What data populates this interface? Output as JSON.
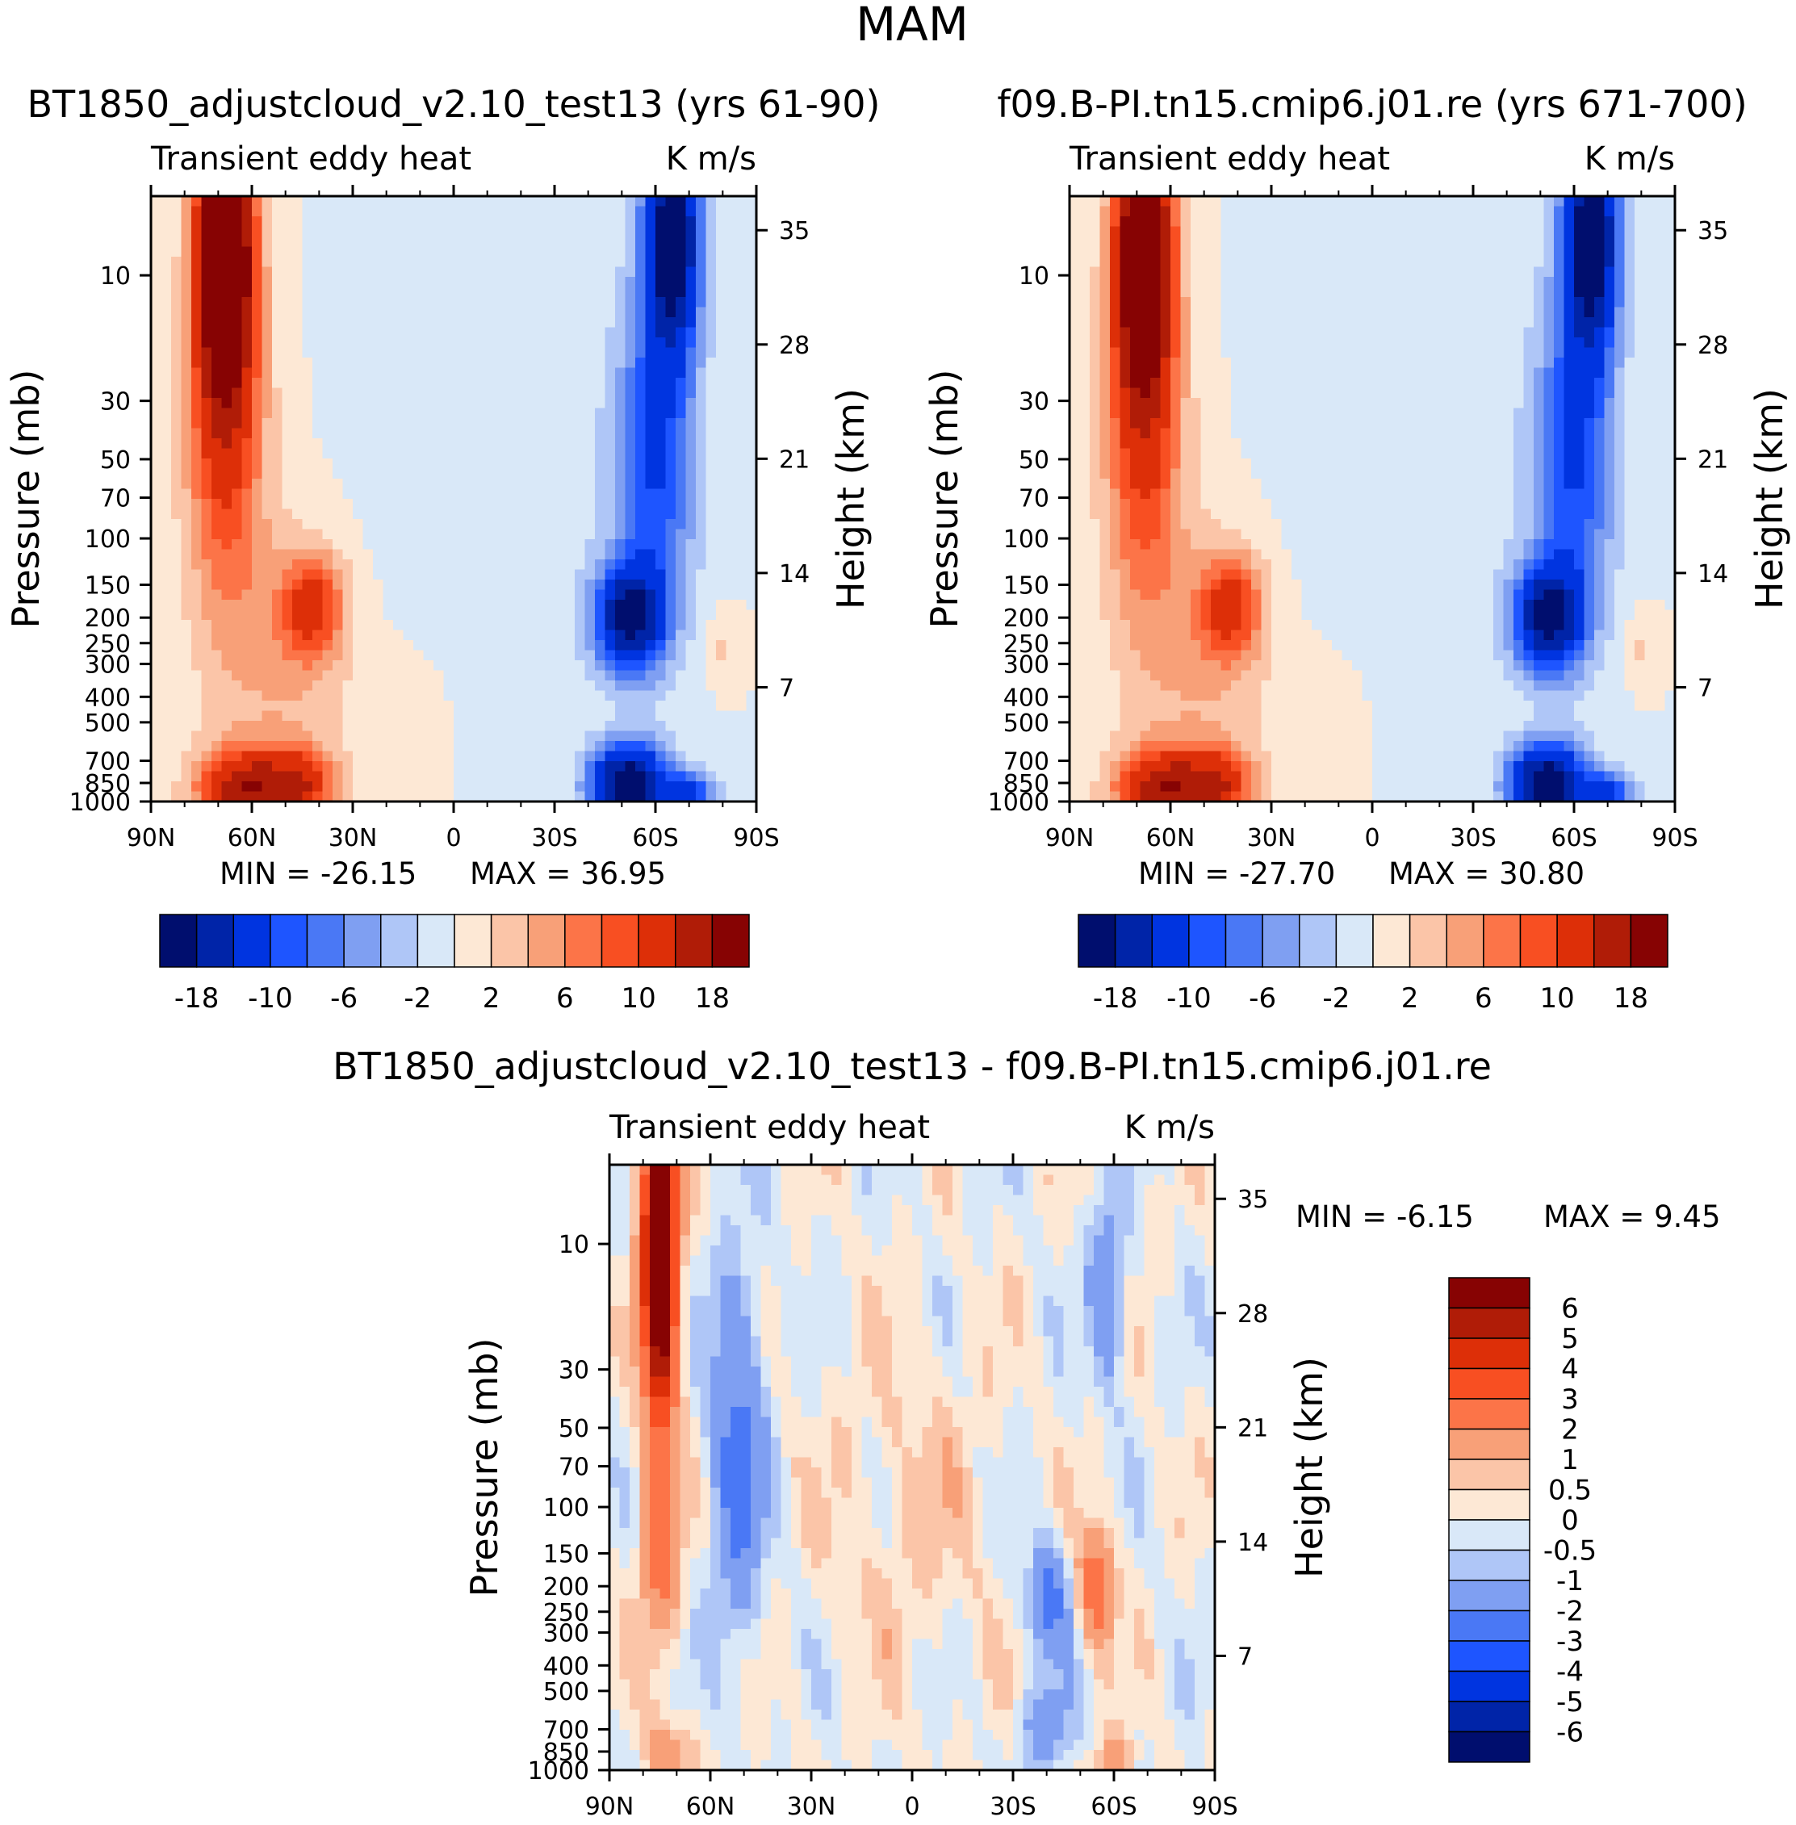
{
  "figure": {
    "title": "MAM"
  },
  "chart_data": [
    {
      "type": "contour",
      "panel": "top-left",
      "title": "BT1850_adjustcloud_v2.10_test13 (yrs 61-90)",
      "left_string": "Transient eddy heat",
      "right_string": "K m/s",
      "xlabel": "",
      "ylabel": "Pressure (mb)",
      "ylabel_right": "Height (km)",
      "xticks": [
        "90N",
        "60N",
        "30N",
        "0",
        "30S",
        "60S",
        "90S"
      ],
      "yticks": [
        "10",
        "30",
        "50",
        "70",
        "100",
        "150",
        "200",
        "250",
        "300",
        "400",
        "500",
        "700",
        "850",
        "1000"
      ],
      "yticks_right": [
        "35",
        "28",
        "21",
        "14",
        "7"
      ],
      "min_label": "MIN = -26.15",
      "max_label": "MAX = 36.95",
      "min": -26.15,
      "max": 36.95,
      "levels": [
        -18,
        -14,
        -10,
        -8,
        -6,
        -4,
        -2,
        0,
        2,
        4,
        6,
        8,
        10,
        14,
        18
      ],
      "colorbar_labels": [
        "-18",
        "-10",
        "-6",
        "-2",
        "2",
        "6",
        "10",
        "18"
      ],
      "colors": [
        "#000e6e",
        "#0024a8",
        "#0034e0",
        "#1e55ff",
        "#4a78f5",
        "#7f9ff2",
        "#afc6f7",
        "#d9e8f8",
        "#fde8d5",
        "#fbc5a8",
        "#f8a078",
        "#fc7448",
        "#f84f22",
        "#dd2f08",
        "#b01c07",
        "#870303"
      ]
    },
    {
      "type": "contour",
      "panel": "top-right",
      "title": "f09.B-PI.tn15.cmip6.j01.re (yrs 671-700)",
      "left_string": "Transient eddy heat",
      "right_string": "K m/s",
      "xlabel": "",
      "ylabel": "Pressure (mb)",
      "ylabel_right": "Height (km)",
      "xticks": [
        "90N",
        "60N",
        "30N",
        "0",
        "30S",
        "60S",
        "90S"
      ],
      "yticks": [
        "10",
        "30",
        "50",
        "70",
        "100",
        "150",
        "200",
        "250",
        "300",
        "400",
        "500",
        "700",
        "850",
        "1000"
      ],
      "yticks_right": [
        "35",
        "28",
        "21",
        "14",
        "7"
      ],
      "min_label": "MIN = -27.70",
      "max_label": "MAX = 30.80",
      "min": -27.7,
      "max": 30.8,
      "levels": [
        -18,
        -14,
        -10,
        -8,
        -6,
        -4,
        -2,
        0,
        2,
        4,
        6,
        8,
        10,
        14,
        18
      ],
      "colorbar_labels": [
        "-18",
        "-10",
        "-6",
        "-2",
        "2",
        "6",
        "10",
        "18"
      ],
      "colors": [
        "#000e6e",
        "#0024a8",
        "#0034e0",
        "#1e55ff",
        "#4a78f5",
        "#7f9ff2",
        "#afc6f7",
        "#d9e8f8",
        "#fde8d5",
        "#fbc5a8",
        "#f8a078",
        "#fc7448",
        "#f84f22",
        "#dd2f08",
        "#b01c07",
        "#870303"
      ]
    },
    {
      "type": "contour",
      "panel": "bottom",
      "title": "BT1850_adjustcloud_v2.10_test13 - f09.B-PI.tn15.cmip6.j01.re",
      "left_string": "Transient eddy heat",
      "right_string": "K m/s",
      "xlabel": "",
      "ylabel": "Pressure (mb)",
      "ylabel_right": "Height (km)",
      "xticks": [
        "90N",
        "60N",
        "30N",
        "0",
        "30S",
        "60S",
        "90S"
      ],
      "yticks": [
        "10",
        "30",
        "50",
        "70",
        "100",
        "150",
        "200",
        "250",
        "300",
        "400",
        "500",
        "700",
        "850",
        "1000"
      ],
      "yticks_right": [
        "35",
        "28",
        "21",
        "14",
        "7"
      ],
      "min_label": "MIN = -6.15",
      "max_label": "MAX = 9.45",
      "min": -6.15,
      "max": 9.45,
      "levels": [
        -6,
        -5,
        -4,
        -3,
        -2,
        -1,
        -0.5,
        0,
        0.5,
        1,
        2,
        3,
        4,
        5,
        6
      ],
      "colorbar_labels": [
        "6",
        "5",
        "4",
        "3",
        "2",
        "1",
        "0.5",
        "0",
        "-0.5",
        "-1",
        "-2",
        "-3",
        "-4",
        "-5",
        "-6"
      ],
      "colors": [
        "#870303",
        "#b01c07",
        "#dd2f08",
        "#f84f22",
        "#fc7448",
        "#f8a078",
        "#fbc5a8",
        "#fde8d5",
        "#d9e8f8",
        "#afc6f7",
        "#7f9ff2",
        "#4a78f5",
        "#1e55ff",
        "#0034e0",
        "#0024a8",
        "#000e6e"
      ]
    }
  ]
}
